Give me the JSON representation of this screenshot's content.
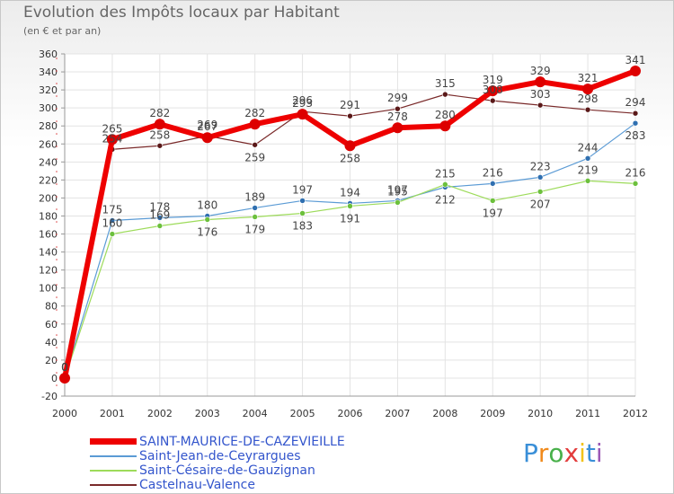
{
  "title": "Evolution des Impôts locaux par Habitant",
  "subtitle": "(en € et par an)",
  "brand": "Proxiti",
  "colors": {
    "axis_text": "#333333",
    "grid": "#e3e3e3",
    "frame_border": "#c8c8c8"
  },
  "chart_data": {
    "type": "line",
    "title": "Evolution des Impôts locaux par Habitant",
    "subtitle": "(en € et par an)",
    "xlabel": "",
    "ylabel": "",
    "ylim": [
      -20,
      360
    ],
    "yticks": [
      "-20",
      "0",
      "20",
      "40",
      "60",
      "80",
      "100",
      "120",
      "140",
      "160",
      "180",
      "200",
      "220",
      "240",
      "260",
      "280",
      "300",
      "320",
      "340",
      "360"
    ],
    "categories": [
      "2000",
      "2001",
      "2002",
      "2003",
      "2004",
      "2005",
      "2006",
      "2007",
      "2008",
      "2009",
      "2010",
      "2011",
      "2012"
    ],
    "legend_position": "bottom-left",
    "grid": true,
    "series": [
      {
        "name": "Castelnau-Valence",
        "color": "#7a2a2a",
        "marker": "#5a1818",
        "line_width": 1.2,
        "marker_size": 3,
        "values": [
          0,
          254,
          258,
          269,
          259,
          296,
          291,
          299,
          315,
          308,
          303,
          298,
          294
        ],
        "labels": [
          "0",
          "254",
          "258",
          "269",
          "259",
          "296",
          "291",
          "299",
          "315",
          "308",
          "303",
          "298",
          "294"
        ],
        "label_offsets": [
          -1,
          -1,
          -1,
          -1,
          1,
          -1,
          -1,
          -1,
          -1,
          -1,
          -1,
          -1,
          -1
        ]
      },
      {
        "name": "Saint-Jean-de-Ceyrargues",
        "color": "#5b9bd5",
        "marker": "#2f6fb0",
        "line_width": 1.2,
        "marker_size": 3,
        "values": [
          0,
          175,
          178,
          180,
          189,
          197,
          194,
          197,
          212,
          216,
          223,
          244,
          283
        ],
        "labels": [
          "0",
          "175",
          "178",
          "180",
          "189",
          "197",
          "194",
          "197",
          "212",
          "216",
          "223",
          "244",
          "283"
        ],
        "label_offsets": [
          -1,
          -1,
          -1,
          -1,
          -1,
          -1,
          -1,
          -1,
          1,
          -1,
          -1,
          -1,
          1
        ]
      },
      {
        "name": "Saint-Césaire-de-Gauzignan",
        "color": "#9ddb5a",
        "marker": "#6cc03c",
        "line_width": 1.2,
        "marker_size": 3,
        "values": [
          0,
          160,
          169,
          176,
          179,
          183,
          191,
          195,
          215,
          197,
          207,
          219,
          216
        ],
        "labels": [
          "0",
          "160",
          "169",
          "176",
          "179",
          "183",
          "191",
          "195",
          "215",
          "197",
          "207",
          "219",
          "216"
        ],
        "label_offsets": [
          -1,
          -1,
          -1,
          1,
          1,
          1,
          1,
          -1,
          -1,
          1,
          1,
          -1,
          -1
        ]
      },
      {
        "name": "SAINT-MAURICE-DE-CAZEVIEILLE",
        "color": "#ee0000",
        "marker": "#dd0000",
        "line_width": 6,
        "marker_size": 6,
        "values": [
          0,
          265,
          282,
          267,
          282,
          293,
          258,
          278,
          280,
          319,
          329,
          321,
          341
        ],
        "labels": [
          "0",
          "265",
          "282",
          "267",
          "282",
          "293",
          "258",
          "278",
          "280",
          "319",
          "329",
          "321",
          "341"
        ],
        "label_offsets": [
          -1,
          -1,
          -1,
          -1,
          -1,
          -1,
          1,
          -1,
          -1,
          -1,
          -1,
          -1,
          -1
        ]
      }
    ],
    "legend": [
      {
        "name": "SAINT-MAURICE-DE-CAZEVIEILLE",
        "color": "#ee0000"
      },
      {
        "name": "Saint-Jean-de-Ceyrargues",
        "color": "#5b9bd5"
      },
      {
        "name": "Saint-Césaire-de-Gauzignan",
        "color": "#9ddb5a"
      },
      {
        "name": "Castelnau-Valence",
        "color": "#7a2a2a"
      }
    ]
  }
}
